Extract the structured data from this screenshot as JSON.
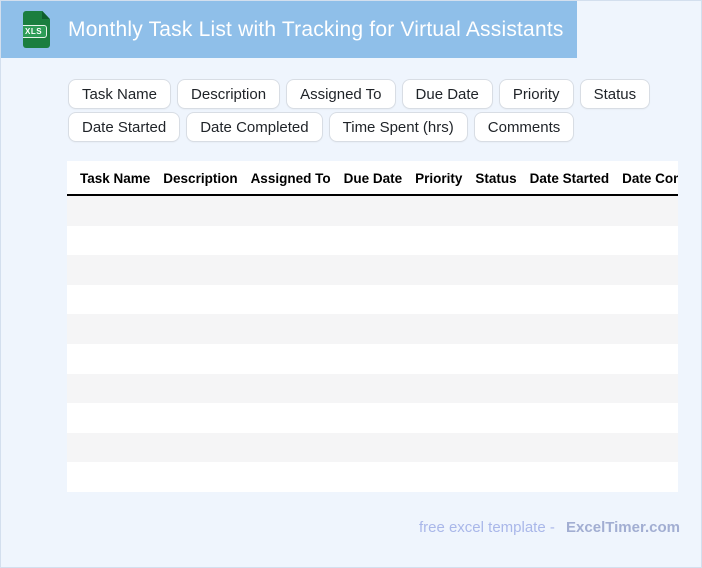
{
  "header": {
    "title": "Monthly Task List with Tracking for Virtual Assistants",
    "icon_label": "XLS"
  },
  "chips": {
    "row1": [
      "Task Name",
      "Description",
      "Assigned To",
      "Due Date",
      "Priority",
      "Status"
    ],
    "row2": [
      "Date Started",
      "Date Completed",
      "Time Spent (hrs)",
      "Comments"
    ]
  },
  "table": {
    "columns": [
      "Task Name",
      "Description",
      "Assigned To",
      "Due Date",
      "Priority",
      "Status",
      "Date Started",
      "Date Completed",
      "Time Spent (hrs)",
      "Comments"
    ],
    "empty_row_count": 10
  },
  "footer": {
    "prefix": "free excel template -",
    "brand": "ExcelTimer.com"
  },
  "colors": {
    "header_bg": "#8fbfe9",
    "page_bg": "#eff5fd",
    "stripe": "#f5f5f6",
    "icon_green": "#1b7e3f",
    "footer_text": "#a9b7e9",
    "footer_brand": "#a2aed2"
  }
}
